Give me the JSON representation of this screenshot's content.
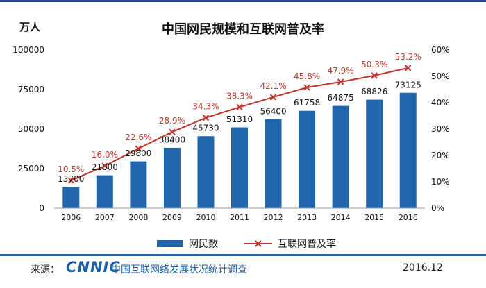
{
  "header": {
    "unit_label": "万人",
    "title": "中国网民规模和互联网普及率"
  },
  "chart_data": {
    "type": "bar",
    "categories": [
      "2006",
      "2007",
      "2008",
      "2009",
      "2010",
      "2011",
      "2012",
      "2013",
      "2014",
      "2015",
      "2016"
    ],
    "series": [
      {
        "name": "网民数",
        "type": "bar",
        "axis": "left",
        "color": "#2166ac",
        "values": [
          13700,
          21000,
          29800,
          38400,
          45730,
          51310,
          56400,
          61758,
          64875,
          68826,
          73125
        ],
        "labels": [
          "13700",
          "21000",
          "29800",
          "38400",
          "45730",
          "51310",
          "56400",
          "61758",
          "64875",
          "68826",
          "73125"
        ]
      },
      {
        "name": "互联网普及率",
        "type": "line",
        "axis": "right",
        "color": "#c0362c",
        "values": [
          10.5,
          16.0,
          22.6,
          28.9,
          34.3,
          38.3,
          42.1,
          45.8,
          47.9,
          50.3,
          53.2
        ],
        "labels": [
          "10.5%",
          "16.0%",
          "22.6%",
          "28.9%",
          "34.3%",
          "38.3%",
          "42.1%",
          "45.8%",
          "47.9%",
          "50.3%",
          "53.2%"
        ]
      }
    ],
    "y_left": {
      "ylim": [
        0,
        100000
      ],
      "ticks": [
        "0",
        "25000",
        "50000",
        "75000",
        "100000"
      ]
    },
    "y_right": {
      "ylim": [
        0,
        60
      ],
      "ticks": [
        "0%",
        "10%",
        "20%",
        "30%",
        "40%",
        "50%",
        "60%"
      ]
    },
    "legend_position": "bottom-center",
    "grid": false
  },
  "footer": {
    "source_label": "来源：",
    "logo": "CNNIC",
    "organization": "中国互联网络发展状况统计调查",
    "date": "2016.12"
  }
}
